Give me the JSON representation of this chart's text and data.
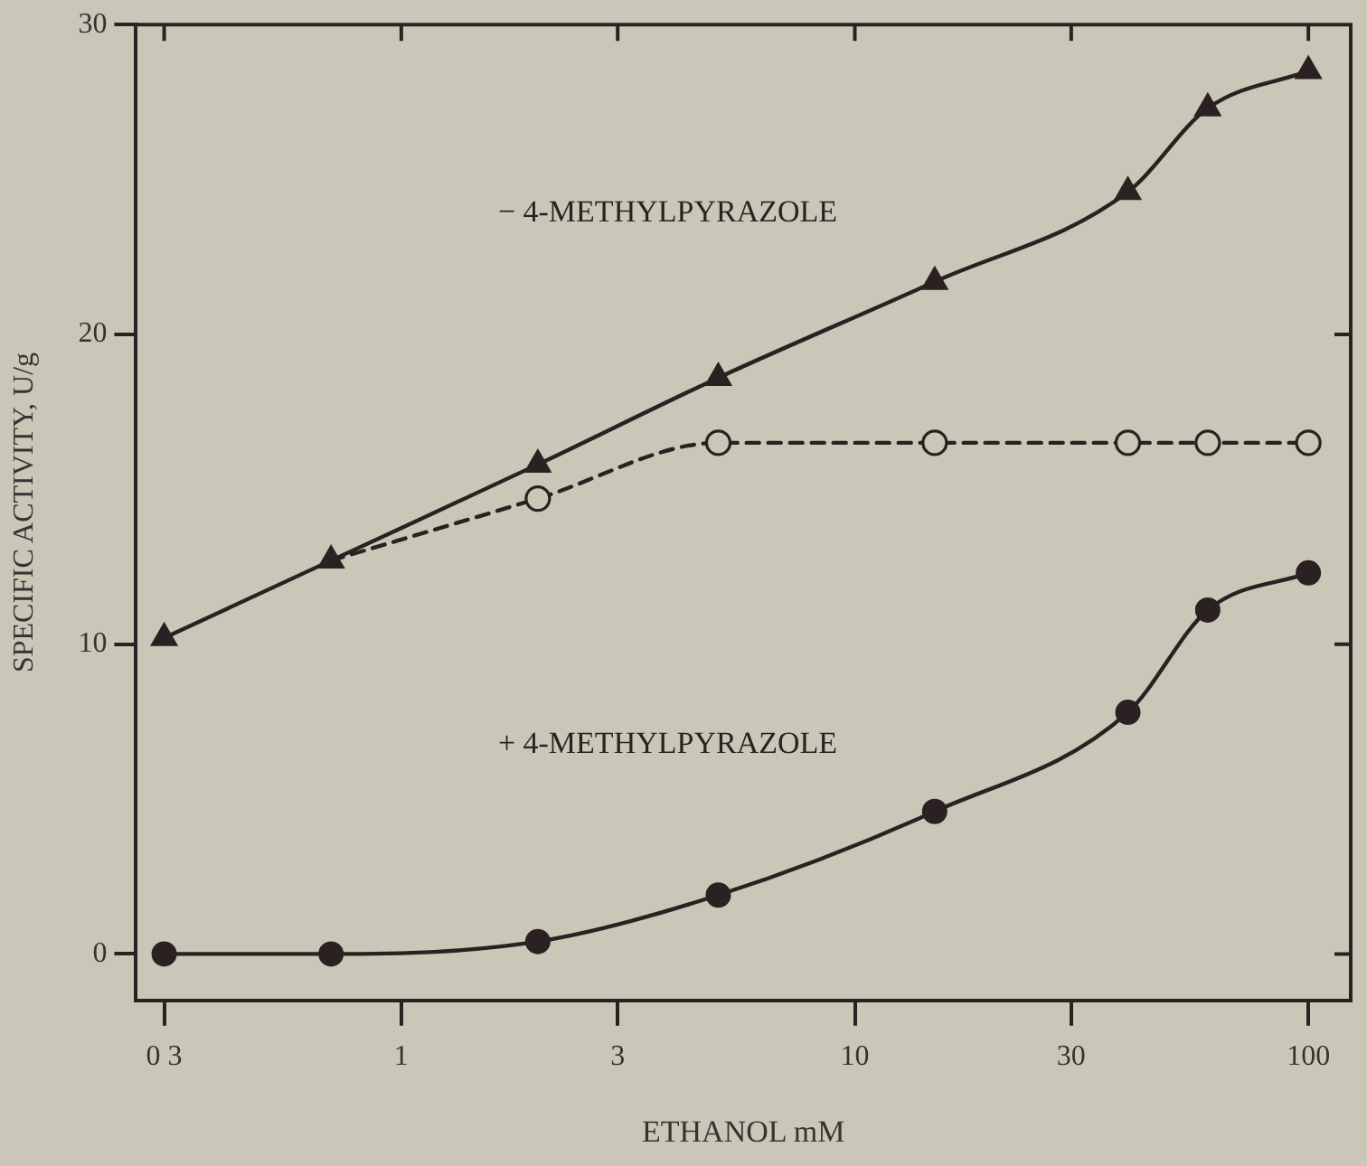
{
  "chart_data": {
    "type": "line",
    "xlabel": "ETHANOL mM",
    "ylabel": "SPECIFIC ACTIVITY, U/g",
    "log": "x",
    "xlim": [
      0.26,
      124
    ],
    "xticks": [
      {
        "value": 0.3,
        "label": "0 3"
      },
      1,
      3,
      10,
      30,
      100
    ],
    "ylim": [
      -1.5,
      30
    ],
    "yticks": [
      0,
      10,
      20,
      30
    ],
    "grid": false,
    "legend": false,
    "x": [
      0.3,
      0.7,
      2,
      5,
      15,
      40,
      60,
      100
    ],
    "series": [
      {
        "name": "− 4-METHYLPYRAZOLE",
        "color": "#2a2222",
        "marker": "triangle",
        "line_style": "solid",
        "values": [
          10.2,
          12.7,
          15.8,
          18.6,
          21.7,
          24.6,
          27.3,
          28.5
        ]
      },
      {
        "color": "#2a2222",
        "marker": "circle",
        "line_style": "dashed",
        "values": [
          null,
          12.7,
          14.7,
          16.5,
          16.5,
          16.5,
          16.5,
          16.5
        ]
      },
      {
        "name": "+ 4-METHYLPYRAZOLE",
        "color": "#2a2222",
        "marker": "circle",
        "line_style": "solid",
        "values": [
          0,
          0,
          0.4,
          1.9,
          4.6,
          7.8,
          11.1,
          12.3
        ]
      }
    ]
  }
}
